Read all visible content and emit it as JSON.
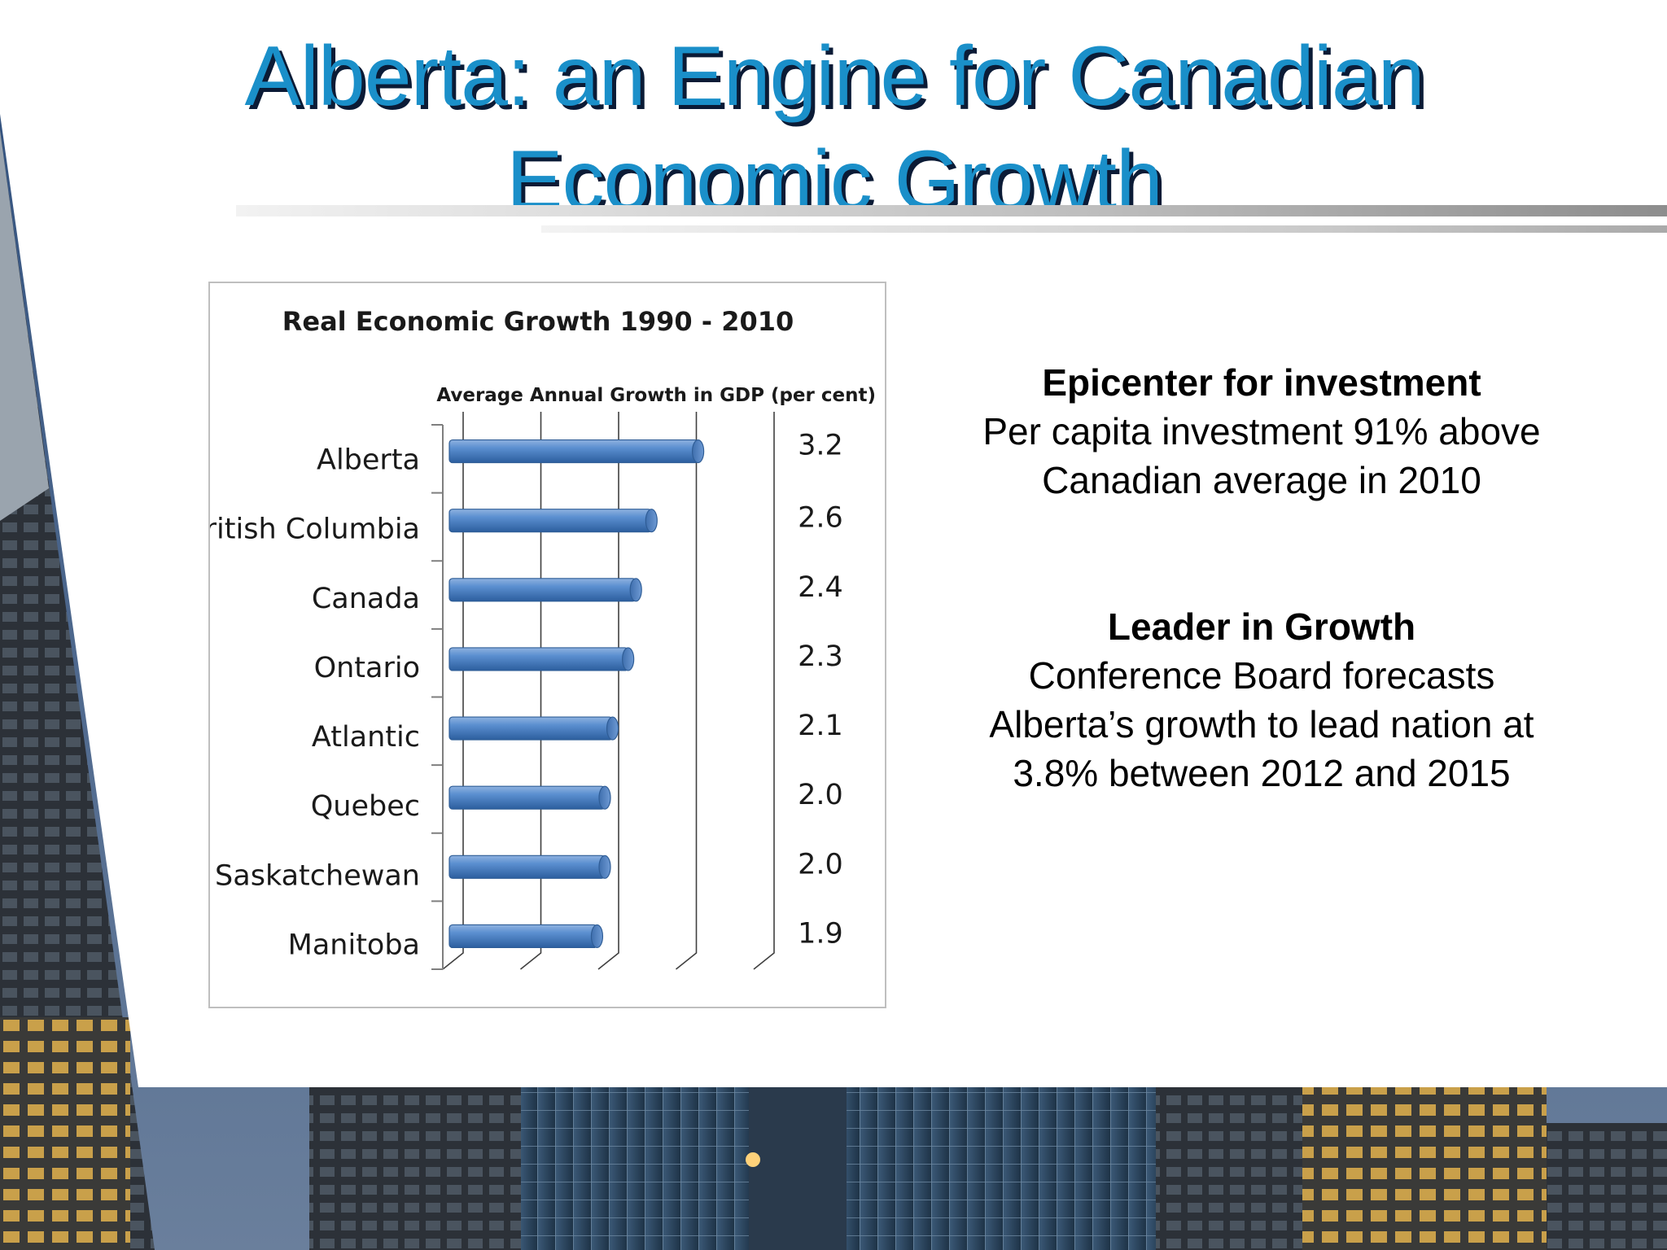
{
  "slide": {
    "title": "Alberta: an Engine for Canadian Economic Growth"
  },
  "blocks": [
    {
      "heading": "Epicenter for investment",
      "lines": [
        "Per capita investment 91% above",
        "Canadian average in 2010"
      ]
    },
    {
      "heading": "Leader in Growth",
      "lines": [
        "Conference Board forecasts",
        "Alberta’s growth to lead nation at",
        "3.8% between 2012 and 2015"
      ]
    }
  ],
  "chart_data": {
    "type": "bar",
    "orientation": "horizontal",
    "title": "Real Economic Growth 1990 - 2010",
    "subtitle": "Average Annual Growth in GDP (per cent)",
    "categories": [
      "Alberta",
      "British Columbia",
      "Canada",
      "Ontario",
      "Atlantic",
      "Quebec",
      "Saskatchewan",
      "Manitoba"
    ],
    "values": [
      3.2,
      2.6,
      2.4,
      2.3,
      2.1,
      2.0,
      2.0,
      1.9
    ],
    "value_labels": [
      "3.2",
      "2.6",
      "2.4",
      "2.3",
      "2.1",
      "2.0",
      "2.0",
      "1.9"
    ],
    "xlim": [
      0,
      4
    ],
    "grid": true,
    "style": "3d-cylinder",
    "bar_color": "#4a7ebf"
  }
}
